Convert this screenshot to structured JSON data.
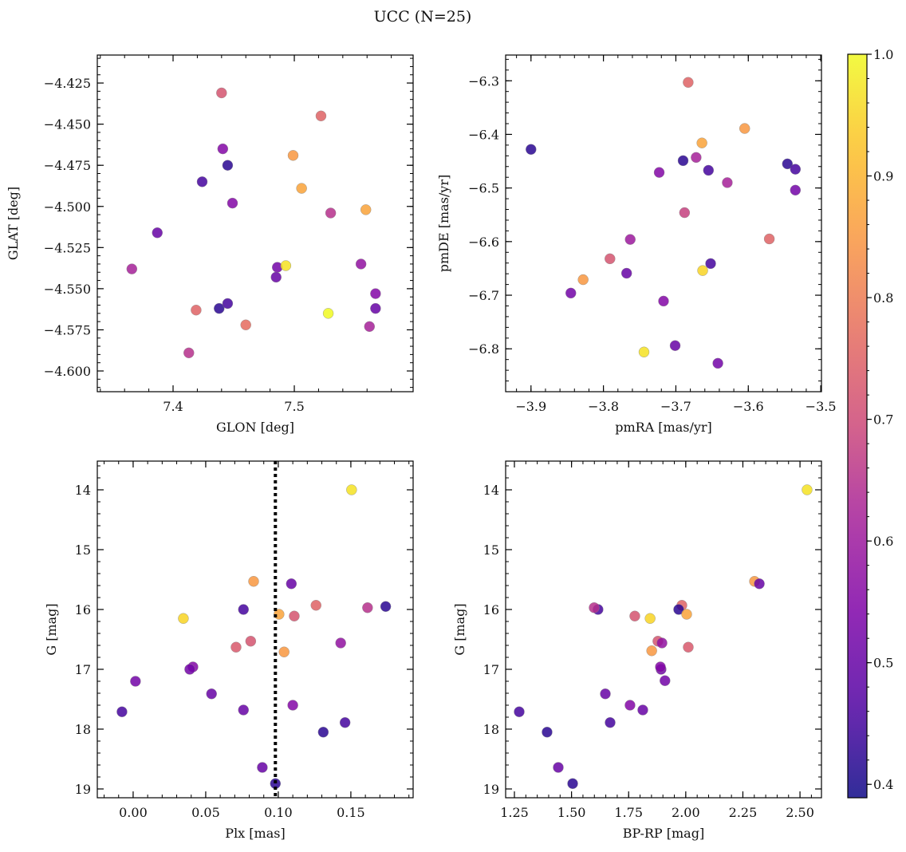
{
  "chart_data": {
    "type": "scatter",
    "title": "UCC (N=25)",
    "colorbar": {
      "range": [
        0.389,
        1.0
      ],
      "ticks": [
        0.4,
        0.5,
        0.6,
        0.7,
        0.8,
        0.9,
        1.0
      ],
      "tick_labels": [
        "0.4",
        "0.5",
        "0.6",
        "0.7",
        "0.8",
        "0.9",
        "1.0"
      ],
      "colormap": "plasma"
    },
    "panels": [
      {
        "name": "glon-glat",
        "xlabel": "GLON [deg]",
        "ylabel": "GLAT [deg]",
        "xlim": [
          7.3375,
          7.598
        ],
        "ylim": [
          -4.6126,
          -4.408
        ],
        "y_inverted": false,
        "xticks": [
          7.4,
          7.5
        ],
        "xtick_labels": [
          "7.4",
          "7.5"
        ],
        "xminor": 0.02,
        "yticks": [
          -4.425,
          -4.45,
          -4.475,
          -4.5,
          -4.525,
          -4.55,
          -4.575,
          -4.6
        ],
        "ytick_labels": [
          "−4.425",
          "−4.450",
          "−4.475",
          "−4.500",
          "−4.525",
          "−4.550",
          "−4.575",
          "−4.600"
        ],
        "yminor": 0.005,
        "points": [
          [
            7.44,
            -4.431,
            0.72
          ],
          [
            7.522,
            -4.445,
            0.75
          ],
          [
            7.441,
            -4.465,
            0.55
          ],
          [
            7.499,
            -4.469,
            0.85
          ],
          [
            7.445,
            -4.475,
            0.42
          ],
          [
            7.424,
            -4.485,
            0.45
          ],
          [
            7.506,
            -4.489,
            0.87
          ],
          [
            7.449,
            -4.498,
            0.55
          ],
          [
            7.559,
            -4.502,
            0.87
          ],
          [
            7.53,
            -4.504,
            0.65
          ],
          [
            7.387,
            -4.516,
            0.5
          ],
          [
            7.366,
            -4.538,
            0.62
          ],
          [
            7.555,
            -4.535,
            0.58
          ],
          [
            7.486,
            -4.537,
            0.52
          ],
          [
            7.493,
            -4.536,
            0.97
          ],
          [
            7.485,
            -4.543,
            0.5
          ],
          [
            7.567,
            -4.553,
            0.55
          ],
          [
            7.419,
            -4.563,
            0.75
          ],
          [
            7.438,
            -4.562,
            0.42
          ],
          [
            7.445,
            -4.559,
            0.45
          ],
          [
            7.567,
            -4.562,
            0.5
          ],
          [
            7.528,
            -4.565,
            1.0
          ],
          [
            7.46,
            -4.572,
            0.77
          ],
          [
            7.562,
            -4.573,
            0.62
          ],
          [
            7.413,
            -4.589,
            0.65
          ]
        ]
      },
      {
        "name": "pmra-pmde",
        "xlabel": "pmRA [mas/yr]",
        "ylabel": "pmDE [mas/yr]",
        "xlim": [
          -3.935,
          -3.499
        ],
        "ylim": [
          -6.88,
          -6.252
        ],
        "y_inverted": false,
        "xticks": [
          -3.9,
          -3.8,
          -3.7,
          -3.6,
          -3.5
        ],
        "xtick_labels": [
          "−3.9",
          "−3.8",
          "−3.7",
          "−3.6",
          "−3.5"
        ],
        "xminor": 0.02,
        "yticks": [
          -6.3,
          -6.4,
          -6.5,
          -6.6,
          -6.7,
          -6.8
        ],
        "ytick_labels": [
          "−6.3",
          "−6.4",
          "−6.5",
          "−6.6",
          "−6.7",
          "−6.8"
        ],
        "yminor": 0.02,
        "points": [
          [
            -3.683,
            -6.303,
            0.75
          ],
          [
            -3.9,
            -6.428,
            0.42
          ],
          [
            -3.605,
            -6.389,
            0.85
          ],
          [
            -3.664,
            -6.416,
            0.87
          ],
          [
            -3.69,
            -6.449,
            0.42
          ],
          [
            -3.672,
            -6.443,
            0.62
          ],
          [
            -3.655,
            -6.467,
            0.45
          ],
          [
            -3.546,
            -6.455,
            0.42
          ],
          [
            -3.535,
            -6.465,
            0.45
          ],
          [
            -3.723,
            -6.471,
            0.55
          ],
          [
            -3.629,
            -6.49,
            0.62
          ],
          [
            -3.535,
            -6.504,
            0.52
          ],
          [
            -3.688,
            -6.546,
            0.68
          ],
          [
            -3.571,
            -6.595,
            0.75
          ],
          [
            -3.763,
            -6.596,
            0.6
          ],
          [
            -3.791,
            -6.632,
            0.72
          ],
          [
            -3.652,
            -6.641,
            0.45
          ],
          [
            -3.663,
            -6.654,
            0.95
          ],
          [
            -3.828,
            -6.671,
            0.85
          ],
          [
            -3.768,
            -6.659,
            0.5
          ],
          [
            -3.845,
            -6.696,
            0.52
          ],
          [
            -3.717,
            -6.711,
            0.55
          ],
          [
            -3.701,
            -6.794,
            0.5
          ],
          [
            -3.744,
            -6.806,
            0.97
          ],
          [
            -3.642,
            -6.827,
            0.52
          ]
        ]
      },
      {
        "name": "plx-g",
        "xlabel": "Plx [mas]",
        "ylabel": "G [mag]",
        "xlim": [
          -0.0247,
          0.1929
        ],
        "ylim": [
          13.52,
          19.147
        ],
        "y_inverted": true,
        "xticks": [
          0.0,
          0.05,
          0.1,
          0.15
        ],
        "xtick_labels": [
          "0.00",
          "0.05",
          "0.10",
          "0.15"
        ],
        "xminor": 0.01,
        "yticks": [
          14,
          15,
          16,
          17,
          18,
          19
        ],
        "ytick_labels": [
          "14",
          "15",
          "16",
          "17",
          "18",
          "19"
        ],
        "yminor": 0.2,
        "vline": 0.098,
        "points": [
          [
            0.1505,
            14.0,
            0.97
          ],
          [
            0.083,
            15.53,
            0.85
          ],
          [
            0.109,
            15.57,
            0.5
          ],
          [
            0.076,
            16.0,
            0.45
          ],
          [
            0.1005,
            16.08,
            0.87
          ],
          [
            0.0346,
            16.15,
            0.95
          ],
          [
            0.111,
            16.11,
            0.72
          ],
          [
            0.126,
            15.93,
            0.75
          ],
          [
            0.1615,
            15.97,
            0.65
          ],
          [
            0.174,
            15.95,
            0.42
          ],
          [
            0.081,
            16.53,
            0.72
          ],
          [
            0.0709,
            16.63,
            0.73
          ],
          [
            0.143,
            16.56,
            0.58
          ],
          [
            0.104,
            16.71,
            0.85
          ],
          [
            0.0412,
            16.96,
            0.55
          ],
          [
            0.039,
            17.0,
            0.52
          ],
          [
            0.0016,
            17.2,
            0.52
          ],
          [
            0.054,
            17.41,
            0.5
          ],
          [
            0.076,
            17.68,
            0.5
          ],
          [
            0.11,
            17.6,
            0.55
          ],
          [
            -0.0077,
            17.71,
            0.45
          ],
          [
            0.146,
            17.89,
            0.45
          ],
          [
            0.131,
            18.05,
            0.42
          ],
          [
            0.089,
            18.64,
            0.5
          ],
          [
            0.098,
            18.91,
            0.42
          ]
        ]
      },
      {
        "name": "bprp-g",
        "xlabel": "BP-RP [mag]",
        "ylabel": "G [mag]",
        "xlim": [
          1.2116,
          2.594
        ],
        "ylim": [
          13.52,
          19.147
        ],
        "y_inverted": true,
        "xticks": [
          1.25,
          1.5,
          1.75,
          2.0,
          2.25,
          2.5
        ],
        "xtick_labels": [
          "1.25",
          "1.50",
          "1.75",
          "2.00",
          "2.25",
          "2.50"
        ],
        "xminor": 0.05,
        "yticks": [
          14,
          15,
          16,
          17,
          18,
          19
        ],
        "ytick_labels": [
          "14",
          "15",
          "16",
          "17",
          "18",
          "19"
        ],
        "yminor": 0.2,
        "points": [
          [
            2.531,
            14.0,
            0.97
          ],
          [
            2.301,
            15.53,
            0.85
          ],
          [
            2.322,
            15.57,
            0.5
          ],
          [
            1.616,
            16.0,
            0.45
          ],
          [
            1.599,
            15.97,
            0.65
          ],
          [
            1.777,
            16.11,
            0.72
          ],
          [
            1.844,
            16.15,
            0.95
          ],
          [
            1.983,
            15.93,
            0.75
          ],
          [
            1.969,
            16.0,
            0.42
          ],
          [
            2.004,
            16.08,
            0.87
          ],
          [
            1.851,
            16.69,
            0.85
          ],
          [
            2.011,
            16.63,
            0.73
          ],
          [
            1.878,
            16.53,
            0.72
          ],
          [
            1.896,
            16.56,
            0.58
          ],
          [
            1.892,
            17.0,
            0.52
          ],
          [
            1.889,
            16.96,
            0.55
          ],
          [
            1.909,
            17.19,
            0.52
          ],
          [
            1.648,
            17.41,
            0.5
          ],
          [
            1.756,
            17.6,
            0.55
          ],
          [
            1.812,
            17.68,
            0.5
          ],
          [
            1.271,
            17.71,
            0.45
          ],
          [
            1.669,
            17.89,
            0.45
          ],
          [
            1.393,
            18.05,
            0.42
          ],
          [
            1.442,
            18.64,
            0.5
          ],
          [
            1.505,
            18.91,
            0.42
          ]
        ]
      }
    ]
  }
}
